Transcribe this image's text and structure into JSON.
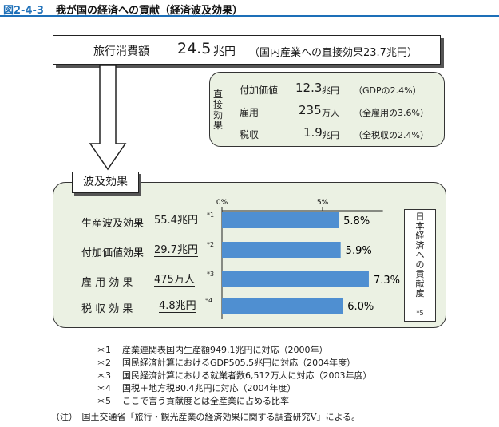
{
  "header": {
    "figure_number": "図2-4-3",
    "title": "我が国の経済への貢献（経済波及効果）"
  },
  "spending": {
    "label": "旅行消費額",
    "value": "24.5",
    "unit": "兆円",
    "note": "（国内産業への直接効果23.7兆円）"
  },
  "direct_effect": {
    "heading": "直接効果",
    "rows": [
      {
        "label": "付加価値",
        "value": "12.3",
        "unit": "兆円",
        "share": "（GDPの2.4%）"
      },
      {
        "label": "雇用",
        "value": "235",
        "unit": "万人",
        "share": "（全雇用の3.6%）"
      },
      {
        "label": "税収",
        "value": "1.9",
        "unit": "兆円",
        "share": "（全税収の2.4%）"
      }
    ]
  },
  "ripple": {
    "label": "波及効果",
    "contribution_label": "日本経済への貢献度",
    "contribution_footnote": "*5"
  },
  "chart_data": {
    "type": "bar",
    "orientation": "horizontal",
    "x_ticks": [
      "0%",
      "5%"
    ],
    "xlim": [
      0,
      8
    ],
    "categories": [
      "生産波及効果",
      "付加価値効果",
      "雇 用 効 果",
      "税 収 効 果"
    ],
    "category_values": [
      "55.4兆円",
      "29.7兆円",
      "475万人",
      "4.8兆円"
    ],
    "footnote_marks": [
      "*1",
      "*2",
      "*3",
      "*4"
    ],
    "values": [
      5.8,
      5.9,
      7.3,
      6.0
    ],
    "value_labels": [
      "5.8%",
      "5.9%",
      "7.3%",
      "6.0%"
    ],
    "bar_color": "#4f8fd1",
    "grid": false
  },
  "footnotes": [
    {
      "mark": "＊1",
      "text": "産業連関表国内生産額949.1兆円に対応（2000年）"
    },
    {
      "mark": "＊2",
      "text": "国民経済計算におけるGDP505.5兆円に対応（2004年度）"
    },
    {
      "mark": "＊3",
      "text": "国民経済計算における就業者数6,512万人に対応（2003年度）"
    },
    {
      "mark": "＊4",
      "text": "国税＋地方税80.4兆円に対応（2004年度）"
    },
    {
      "mark": "＊5",
      "text": "ここで言う貢献度とは全産業に占める比率"
    }
  ],
  "source": "（注）　国土交通省「旅行・観光産業の経済効果に関する調査研究Ⅴ」による。",
  "colors": {
    "accent": "#1d6fb8",
    "panel_fill": "#ebf1e3",
    "bar": "#4f8fd1"
  }
}
